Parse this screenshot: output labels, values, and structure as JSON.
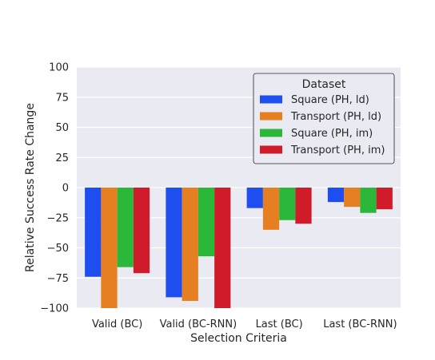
{
  "chart_data": {
    "type": "bar",
    "categories": [
      "Valid (BC)",
      "Valid (BC-RNN)",
      "Last (BC)",
      "Last (BC-RNN)"
    ],
    "series": [
      {
        "name": "Square (PH, ld)",
        "color": "#1f4ef0",
        "values": [
          -74,
          -91,
          -17,
          -12
        ]
      },
      {
        "name": "Transport (PH, ld)",
        "color": "#e67e22",
        "values": [
          -100,
          -94,
          -35,
          -16
        ]
      },
      {
        "name": "Square (PH, im)",
        "color": "#2bb83a",
        "values": [
          -66,
          -57,
          -27,
          -21
        ]
      },
      {
        "name": "Transport (PH, im)",
        "color": "#d01c2a",
        "values": [
          -71,
          -100,
          -30,
          -18
        ]
      }
    ],
    "xlabel": "Selection Criteria",
    "ylabel": "Relative Success Rate Change",
    "ylim": [
      -100,
      100
    ],
    "yticks": [
      -100,
      -75,
      -50,
      -25,
      0,
      25,
      50,
      75,
      100
    ],
    "ytick_labels": [
      "−100",
      "−75",
      "−50",
      "−25",
      "0",
      "25",
      "50",
      "75",
      "100"
    ],
    "legend_title": "Dataset",
    "legend_position": "top-right",
    "grid": true,
    "background_color": "#eaeaf2"
  }
}
